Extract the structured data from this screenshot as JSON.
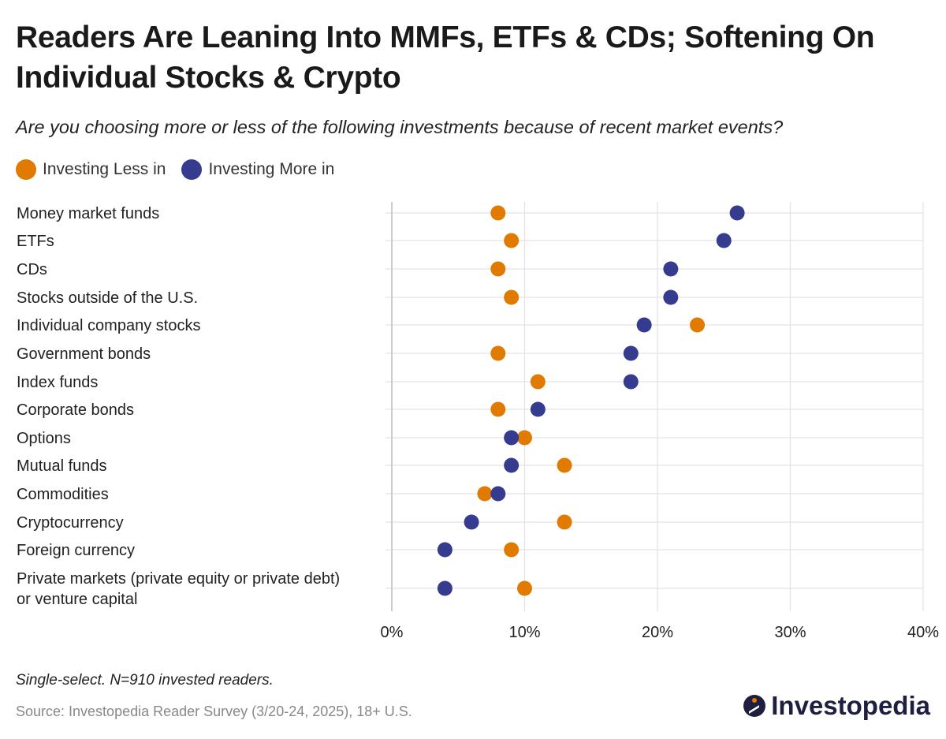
{
  "title": "Readers Are Leaning Into MMFs, ETFs & CDs;  Softening On Individual Stocks & Crypto",
  "subtitle": "Are you choosing more or less of the following investments because of recent market events?",
  "legend": {
    "less_label": "Investing Less in",
    "more_label": "Investing More in"
  },
  "colors": {
    "less": "#e07b00",
    "more": "#353c8f",
    "grid": "#e3e3e3",
    "axis": "#cccccc"
  },
  "chart_data": {
    "type": "scatter",
    "title": "Readers Are Leaning Into MMFs, ETFs & CDs;  Softening On Individual Stocks & Crypto",
    "categories": [
      "Money market funds",
      "ETFs",
      "CDs",
      "Stocks outside of the U.S.",
      "Individual company stocks",
      "Government bonds",
      "Index funds",
      "Corporate bonds",
      "Options",
      "Mutual funds",
      "Commodities",
      "Cryptocurrency",
      "Foreign currency",
      "Private markets (private equity or private debt) or venture capital"
    ],
    "category_lines": [
      [
        "Money market funds"
      ],
      [
        "ETFs"
      ],
      [
        "CDs"
      ],
      [
        "Stocks outside of the U.S."
      ],
      [
        "Individual company stocks"
      ],
      [
        "Government bonds"
      ],
      [
        "Index funds"
      ],
      [
        "Corporate bonds"
      ],
      [
        "Options"
      ],
      [
        "Mutual funds"
      ],
      [
        "Commodities"
      ],
      [
        "Cryptocurrency"
      ],
      [
        "Foreign currency"
      ],
      [
        "Private markets (private equity or private debt)",
        "or venture capital"
      ]
    ],
    "series": [
      {
        "name": "Investing Less in",
        "values": [
          8,
          9,
          8,
          9,
          23,
          8,
          11,
          8,
          10,
          13,
          7,
          13,
          9,
          10
        ]
      },
      {
        "name": "Investing More in",
        "values": [
          26,
          25,
          21,
          21,
          19,
          18,
          18,
          11,
          9,
          9,
          8,
          6,
          4,
          4
        ]
      }
    ],
    "xlim": [
      0,
      40
    ],
    "xticks": [
      0,
      10,
      20,
      30,
      40
    ],
    "xtick_labels": [
      "0%",
      "10%",
      "20%",
      "30%",
      "40%"
    ],
    "xlabel": "",
    "ylabel": "",
    "grid": true,
    "legend_position": "top-left"
  },
  "footer": {
    "note": "Single-select. N=910 invested readers.",
    "source": "Source: Investopedia Reader Survey (3/20-24, 2025), 18+ U.S.",
    "brand": "Investopedia"
  }
}
